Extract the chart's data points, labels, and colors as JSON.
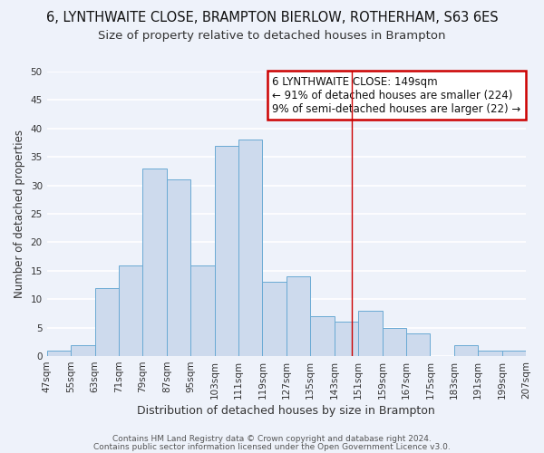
{
  "title1": "6, LYNTHWAITE CLOSE, BRAMPTON BIERLOW, ROTHERHAM, S63 6ES",
  "title2": "Size of property relative to detached houses in Brampton",
  "xlabel": "Distribution of detached houses by size in Brampton",
  "ylabel": "Number of detached properties",
  "bins": [
    47,
    55,
    63,
    71,
    79,
    87,
    95,
    103,
    111,
    119,
    127,
    135,
    143,
    151,
    159,
    167,
    175,
    183,
    191,
    199,
    207
  ],
  "counts": [
    1,
    2,
    12,
    16,
    33,
    31,
    16,
    37,
    38,
    13,
    14,
    7,
    6,
    8,
    5,
    4,
    0,
    2,
    1,
    1
  ],
  "bar_color": "#cddaed",
  "bar_edge_color": "#6aaad4",
  "property_line_x": 149,
  "annotation_title": "6 LYNTHWAITE CLOSE: 149sqm",
  "annotation_line1": "← 91% of detached houses are smaller (224)",
  "annotation_line2": "9% of semi-detached houses are larger (22) →",
  "annotation_box_color": "#cc0000",
  "ylim": [
    0,
    50
  ],
  "yticks": [
    0,
    5,
    10,
    15,
    20,
    25,
    30,
    35,
    40,
    45,
    50
  ],
  "footnote1": "Contains HM Land Registry data © Crown copyright and database right 2024.",
  "footnote2": "Contains public sector information licensed under the Open Government Licence v3.0.",
  "background_color": "#eef2fa",
  "grid_color": "#ffffff",
  "title1_fontsize": 10.5,
  "title2_fontsize": 9.5,
  "xlabel_fontsize": 9,
  "ylabel_fontsize": 8.5,
  "tick_fontsize": 7.5,
  "annotation_fontsize": 8.5,
  "footnote_fontsize": 6.5
}
